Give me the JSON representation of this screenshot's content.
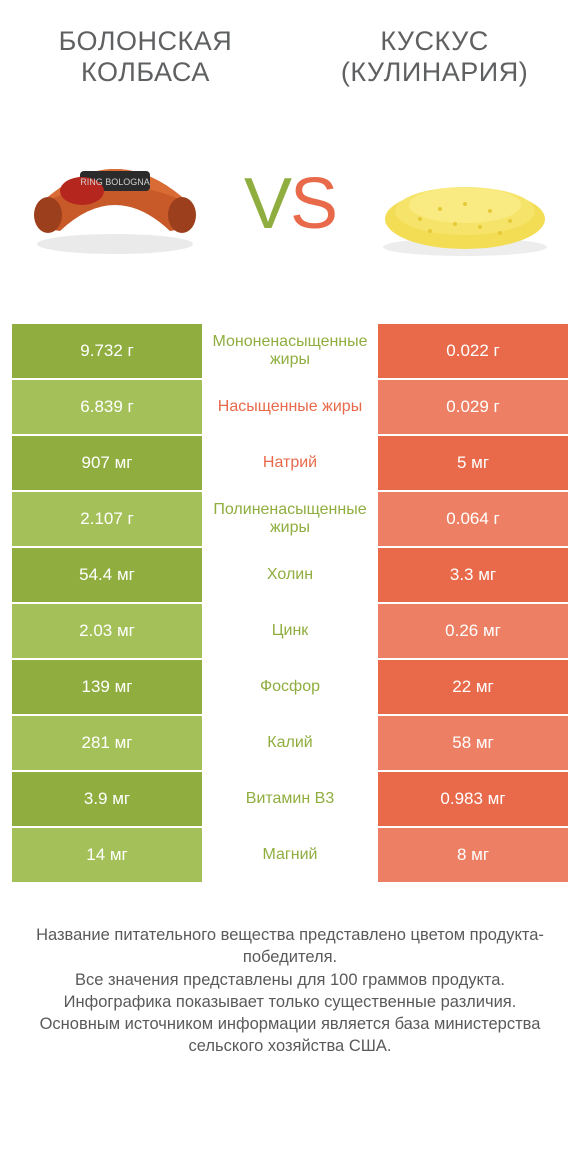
{
  "header": {
    "left_title": "БОЛОНСКАЯ КОЛБАСА",
    "right_title": "КУСКУС (КУЛИНАРИЯ)",
    "vs_v": "V",
    "vs_s": "S"
  },
  "colors": {
    "green_dark": "#8fae3f",
    "green_light": "#a4c159",
    "orange_dark": "#e86a4a",
    "orange_light": "#ed8064",
    "text": "#5a5a5a",
    "white": "#ffffff"
  },
  "rows": [
    {
      "left": "9.732 г",
      "mid": "Мононенасыщенные жиры",
      "right": "0.022 г",
      "winner": "left"
    },
    {
      "left": "6.839 г",
      "mid": "Насыщенные жиры",
      "right": "0.029 г",
      "winner": "right"
    },
    {
      "left": "907 мг",
      "mid": "Натрий",
      "right": "5 мг",
      "winner": "right"
    },
    {
      "left": "2.107 г",
      "mid": "Полиненасыщенные жиры",
      "right": "0.064 г",
      "winner": "left"
    },
    {
      "left": "54.4 мг",
      "mid": "Холин",
      "right": "3.3 мг",
      "winner": "left"
    },
    {
      "left": "2.03 мг",
      "mid": "Цинк",
      "right": "0.26 мг",
      "winner": "left"
    },
    {
      "left": "139 мг",
      "mid": "Фосфор",
      "right": "22 мг",
      "winner": "left"
    },
    {
      "left": "281 мг",
      "mid": "Калий",
      "right": "58 мг",
      "winner": "left"
    },
    {
      "left": "3.9 мг",
      "mid": "Витамин B3",
      "right": "0.983 мг",
      "winner": "left"
    },
    {
      "left": "14 мг",
      "mid": "Магний",
      "right": "8 мг",
      "winner": "left"
    }
  ],
  "footer": {
    "line1": "Название питательного вещества представлено цветом продукта-победителя.",
    "line2": "Все значения представлены для 100 граммов продукта.",
    "line3": "Инфографика показывает только существенные различия.",
    "line4": "Основным источником информации является база министерства сельского хозяйства США."
  }
}
